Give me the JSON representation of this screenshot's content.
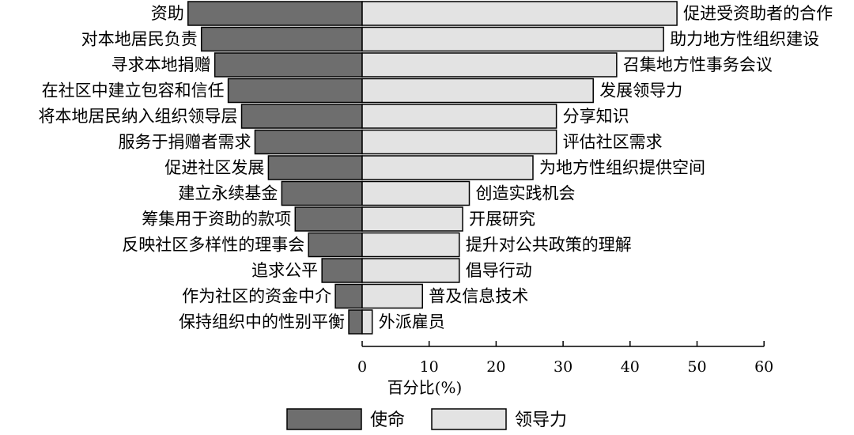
{
  "chart_data": {
    "type": "bar",
    "orientation": "horizontal-diverging",
    "xlabel": "百分比(%)",
    "xlim": [
      0,
      60
    ],
    "xticks": [
      0,
      10,
      20,
      30,
      40,
      50,
      60
    ],
    "legend_position": "bottom",
    "series": [
      {
        "name": "使命",
        "color": "#6e6e6e",
        "categories": [
          "资助",
          "对本地居民负责",
          "寻求本地捐赠",
          "在社区中建立包容和信任",
          "将本地居民纳入组织领导层",
          "服务于捐赠者需求",
          "促进社区发展",
          "建立永续基金",
          "筹集用于资助的款项",
          "反映社区多样性的理事会",
          "追求公平",
          "作为社区的资金中介",
          "保持组织中的性别平衡"
        ],
        "values": [
          26,
          24,
          22,
          20,
          18,
          16,
          14,
          12,
          10,
          8,
          6,
          4,
          2
        ]
      },
      {
        "name": "领导力",
        "color": "#e3e3e3",
        "categories": [
          "促进受资助者的合作",
          "助力地方性组织建设",
          "召集地方性事务会议",
          "发展领导力",
          "分享知识",
          "评估社区需求",
          "为地方性组织提供空间",
          "创造实践机会",
          "开展研究",
          "提升对公共政策的理解",
          "倡导行动",
          "普及信息技术",
          "外派雇员"
        ],
        "values": [
          47,
          45,
          38,
          34.5,
          29,
          29,
          25.5,
          16,
          15,
          14.5,
          14.5,
          9,
          1.5
        ]
      }
    ]
  }
}
